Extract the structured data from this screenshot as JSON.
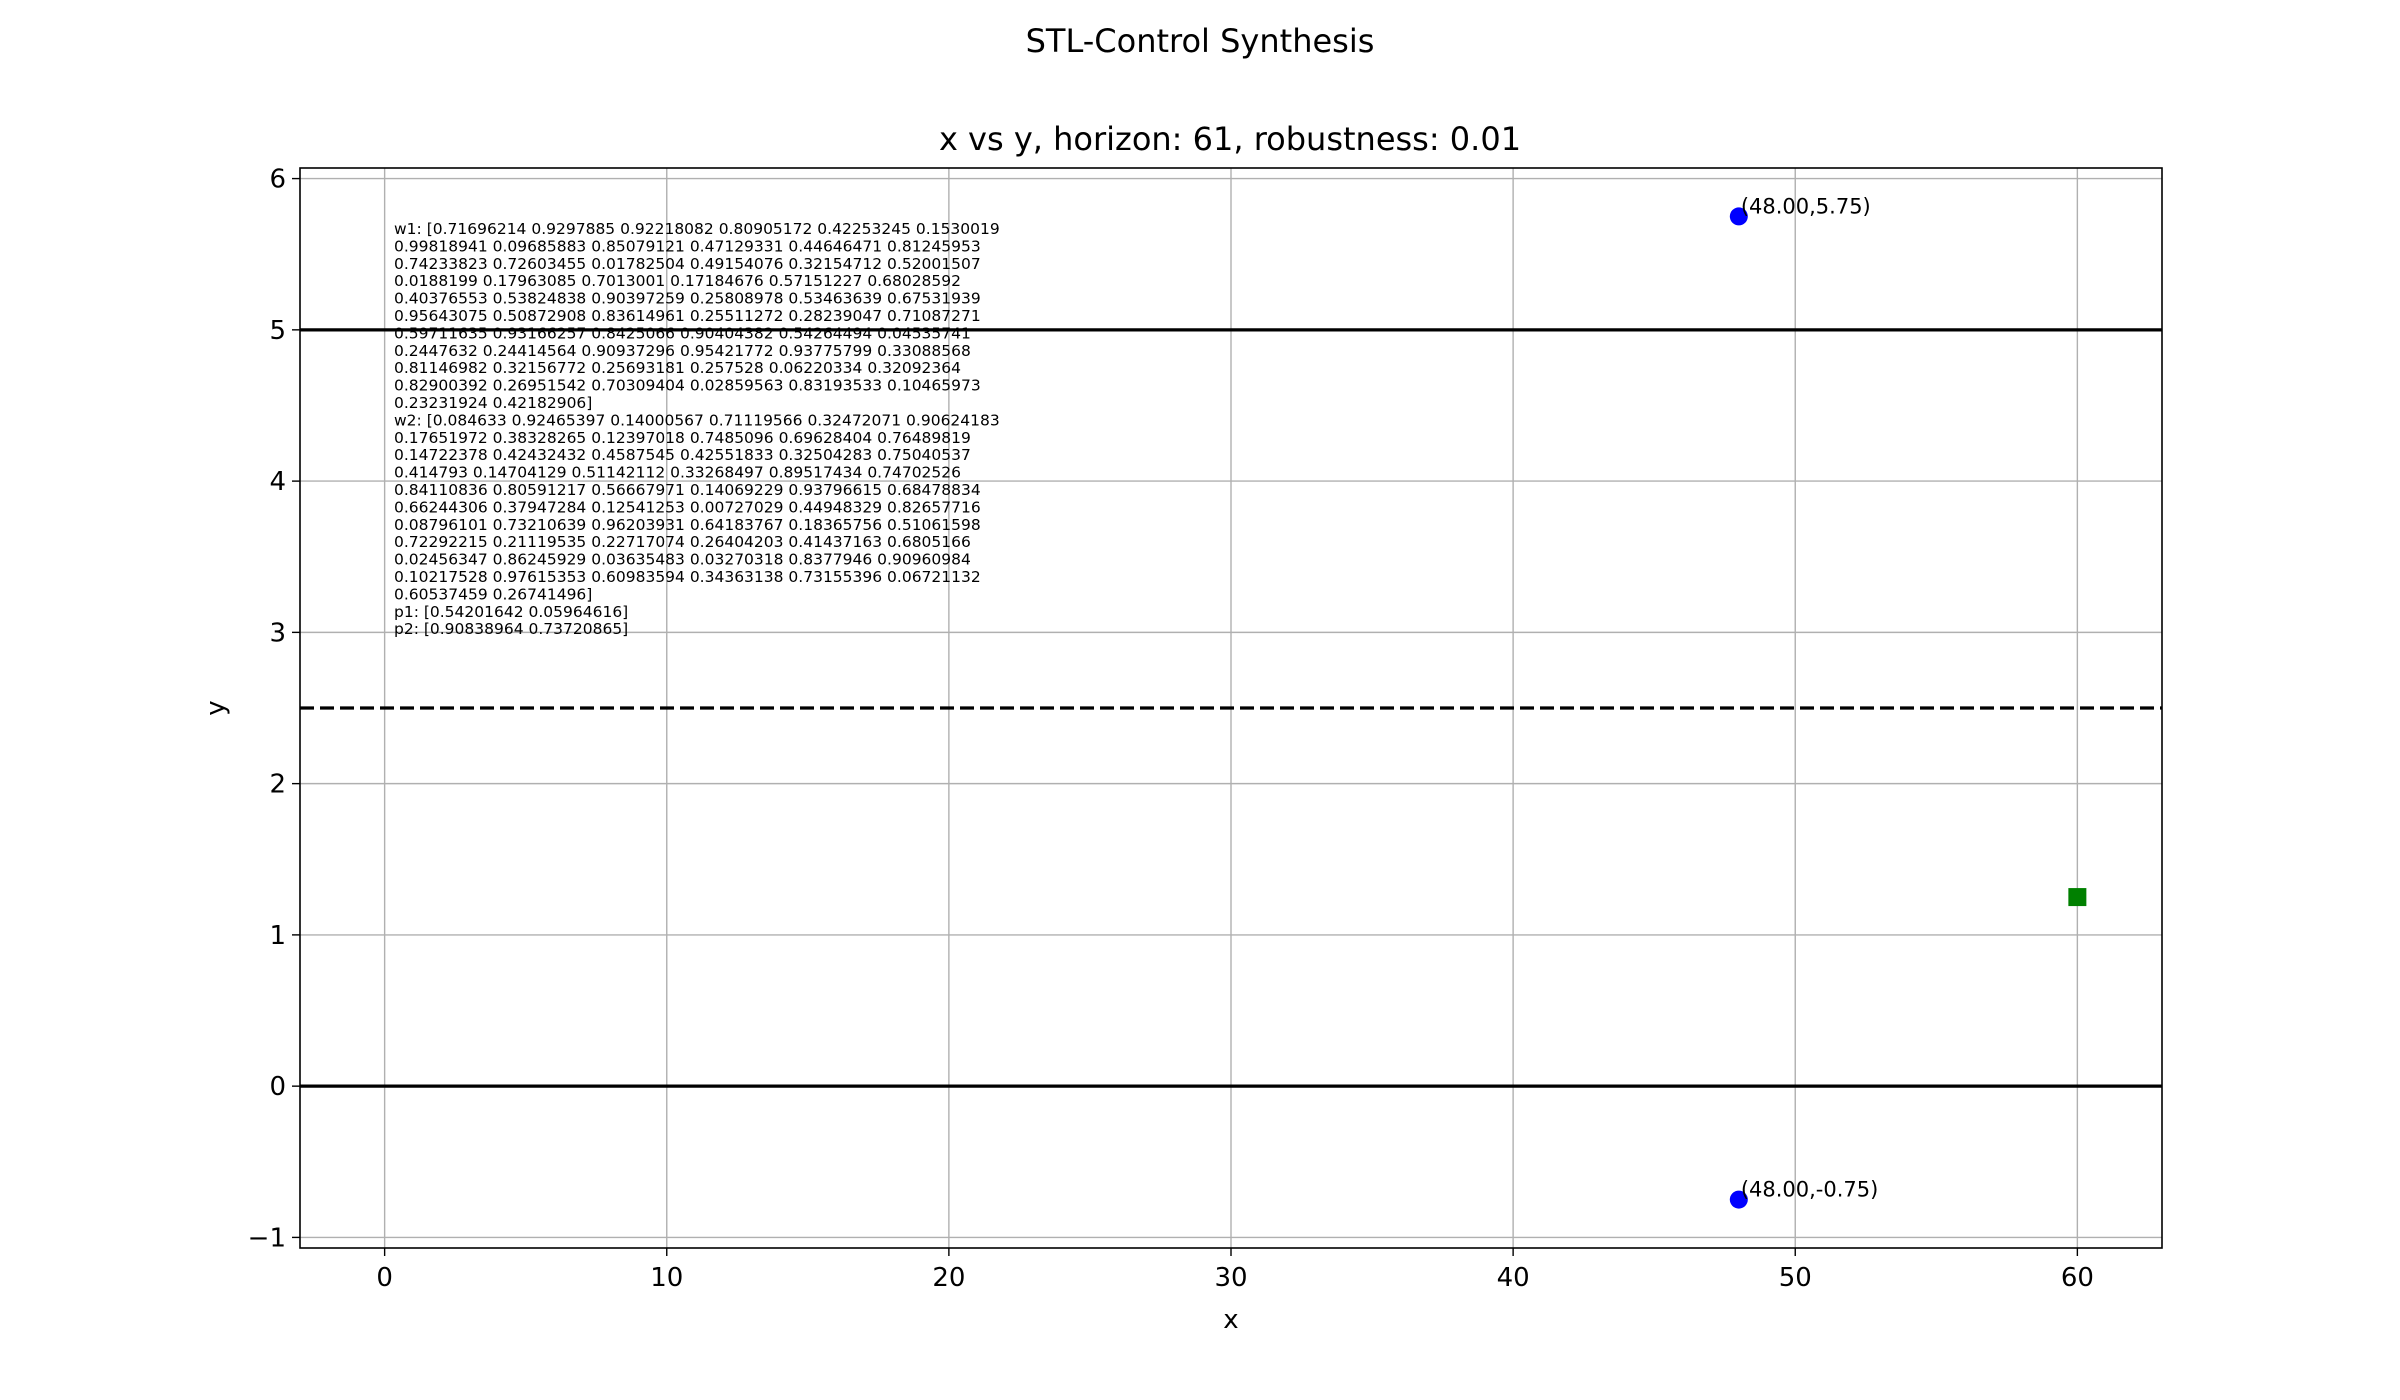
{
  "figure": {
    "suptitle": "STL-Control Synthesis"
  },
  "chart_data": {
    "type": "scatter",
    "title": "x vs y, horizon: 61, robustness: 0.01",
    "xlabel": "x",
    "ylabel": "y",
    "xlim": [
      -3,
      63
    ],
    "ylim": [
      -1.07,
      6.07
    ],
    "xticks": [
      0,
      10,
      20,
      30,
      40,
      50,
      60
    ],
    "xtick_labels": [
      "0",
      "10",
      "20",
      "30",
      "40",
      "50",
      "60"
    ],
    "yticks": [
      -1,
      0,
      1,
      2,
      3,
      4,
      5,
      6
    ],
    "ytick_labels": [
      "−1",
      "0",
      "1",
      "2",
      "3",
      "4",
      "5",
      "6"
    ],
    "grid": true,
    "hlines": [
      {
        "y": 5,
        "style": "solid",
        "color": "#000000"
      },
      {
        "y": 0,
        "style": "solid",
        "color": "#000000"
      },
      {
        "y": 2.5,
        "style": "dashed",
        "color": "#000000"
      }
    ],
    "points": [
      {
        "x": 48,
        "y": 5.75,
        "marker": "circle",
        "color": "#0000ff",
        "label": "(48.00,5.75)"
      },
      {
        "x": 48,
        "y": -0.75,
        "marker": "circle",
        "color": "#0000ff",
        "label": "(48.00,-0.75)"
      },
      {
        "x": 60,
        "y": 1.25,
        "marker": "square",
        "color": "#008000",
        "label": ""
      }
    ],
    "annotation_lines": [
      "w1: [0.71696214 0.9297885  0.92218082 0.80905172 0.42253245 0.1530019",
      " 0.99818941 0.09685883 0.85079121 0.47129331 0.44646471 0.81245953",
      " 0.74233823 0.72603455 0.01782504 0.49154076 0.32154712 0.52001507",
      " 0.0188199  0.17963085 0.7013001  0.17184676 0.57151227 0.68028592",
      " 0.40376553 0.53824838 0.90397259 0.25808978 0.53463639 0.67531939",
      " 0.95643075 0.50872908 0.83614961 0.25511272 0.28239047 0.71087271",
      " 0.59711635 0.93166257 0.8425066  0.90404382 0.54264494 0.04535741",
      " 0.2447632  0.24414564 0.90937296 0.95421772 0.93775799 0.33088568",
      " 0.81146982 0.32156772 0.25693181 0.257528   0.06220334 0.32092364",
      " 0.82900392 0.26951542 0.70309404 0.02859563 0.83193533 0.10465973",
      " 0.23231924 0.42182906]",
      " w2: [0.084633   0.92465397 0.14000567 0.71119566 0.32472071 0.90624183",
      " 0.17651972 0.38328265 0.12397018 0.7485096  0.69628404 0.76489819",
      " 0.14722378 0.42432432 0.4587545  0.42551833 0.32504283 0.75040537",
      " 0.414793   0.14704129 0.51142112 0.33268497 0.89517434 0.74702526",
      " 0.84110836 0.80591217 0.56667971 0.14069229 0.93796615 0.68478834",
      " 0.66244306 0.37947284 0.12541253 0.00727029 0.44948329 0.82657716",
      " 0.08796101 0.73210639 0.96203931 0.64183767 0.18365756 0.51061598",
      " 0.72292215 0.21119535 0.22717074 0.26404203 0.41437163 0.6805166",
      " 0.02456347 0.86245929 0.03635483 0.03270318 0.8377946  0.90960984",
      " 0.10217528 0.97615353 0.60983594 0.34363138 0.73155396 0.06721132",
      " 0.60537459 0.26741496]",
      " p1: [0.54201642 0.05964616]",
      " p2: [0.90838964 0.73720865]"
    ]
  }
}
